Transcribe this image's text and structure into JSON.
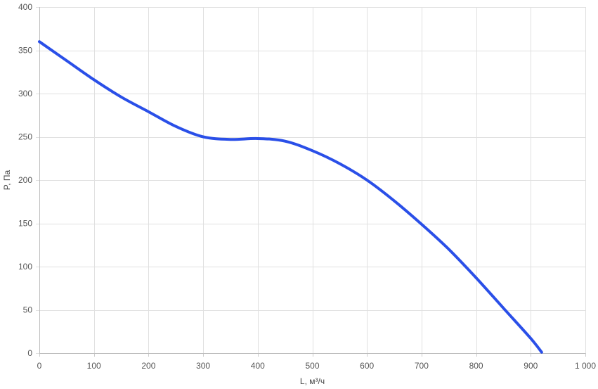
{
  "chart_data": {
    "type": "line",
    "xlabel": "L, м³/ч",
    "ylabel": "P, Па",
    "xlim": [
      0,
      1000
    ],
    "ylim": [
      0,
      400
    ],
    "x_ticks": [
      0,
      100,
      200,
      300,
      400,
      500,
      600,
      700,
      800,
      900,
      1000
    ],
    "x_tick_labels": [
      "0",
      "100",
      "200",
      "300",
      "400",
      "500",
      "600",
      "700",
      "800",
      "900",
      "1 000"
    ],
    "y_ticks": [
      0,
      50,
      100,
      150,
      200,
      250,
      300,
      350,
      400
    ],
    "y_tick_labels": [
      "0",
      "50",
      "100",
      "150",
      "200",
      "250",
      "300",
      "350",
      "400"
    ],
    "grid": true,
    "legend": "none",
    "series": [
      {
        "color": "#2a4fe8",
        "points": [
          [
            0,
            360
          ],
          [
            50,
            338
          ],
          [
            100,
            316
          ],
          [
            150,
            296
          ],
          [
            200,
            279
          ],
          [
            250,
            262
          ],
          [
            300,
            250
          ],
          [
            350,
            247
          ],
          [
            400,
            248
          ],
          [
            450,
            245
          ],
          [
            500,
            234
          ],
          [
            550,
            219
          ],
          [
            600,
            200
          ],
          [
            650,
            176
          ],
          [
            700,
            149
          ],
          [
            750,
            120
          ],
          [
            800,
            87
          ],
          [
            850,
            52
          ],
          [
            900,
            17
          ],
          [
            920,
            1
          ]
        ]
      }
    ]
  }
}
